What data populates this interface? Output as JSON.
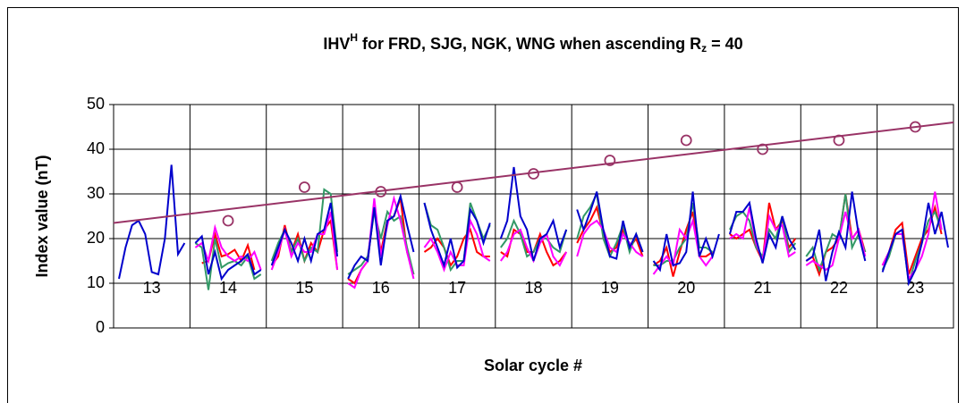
{
  "chart_data": {
    "type": "line",
    "title": {
      "main": "IHV",
      "sup": "H",
      "mid": " for FRD, SJG, NGK, WNG when ascending R",
      "sub": "z",
      "end": " = 40"
    },
    "y_label": "Index value (nT)",
    "x_label": "Solar cycle #",
    "categories": [
      "13",
      "14",
      "15",
      "16",
      "17",
      "18",
      "19",
      "20",
      "21",
      "22",
      "23"
    ],
    "ylim": [
      0,
      50
    ],
    "yticks": [
      0,
      10,
      20,
      30,
      40,
      50
    ],
    "grid": true,
    "series": [
      {
        "color": "#ff0000",
        "values": [
          null,
          [
            null,
            14.5,
            15,
            21,
            16,
            16.5,
            17.5,
            15,
            18.5,
            13,
            null
          ],
          [
            14,
            16,
            23,
            17,
            21,
            15,
            19,
            17,
            22,
            24,
            13
          ],
          [
            11,
            10,
            13,
            15,
            27,
            17,
            24,
            25,
            29,
            17,
            12
          ],
          [
            17,
            18,
            20,
            18,
            14,
            16,
            20,
            22,
            17,
            16,
            16
          ],
          [
            17,
            16,
            22,
            21,
            17,
            17,
            21,
            17,
            14,
            15,
            17
          ],
          [
            19,
            22,
            24,
            27,
            21,
            17,
            18,
            22,
            18,
            20,
            16
          ],
          [
            14,
            15,
            18,
            11.5,
            17,
            22,
            26,
            16,
            16,
            17,
            null
          ],
          [
            21,
            20,
            21,
            22,
            18,
            15,
            28,
            22,
            24,
            18,
            20
          ],
          [
            15,
            16,
            12,
            17,
            18,
            20,
            30,
            20,
            22,
            17,
            null
          ],
          [
            14,
            17,
            22,
            23.5,
            12,
            16,
            20,
            22,
            27,
            21,
            null
          ]
        ]
      },
      {
        "color": "#339966",
        "values": [
          null,
          [
            19,
            18,
            8.5,
            20,
            13.5,
            14.5,
            15,
            14,
            16,
            11,
            12
          ],
          [
            15,
            19,
            22,
            17,
            20,
            15,
            18,
            17,
            31,
            30,
            17
          ],
          [
            12,
            13,
            14,
            16,
            26,
            20,
            26,
            24,
            25,
            18,
            12
          ],
          [
            28,
            23,
            22,
            18,
            13,
            15,
            15,
            28,
            24,
            20,
            23
          ],
          [
            18,
            20,
            24,
            21,
            16,
            17,
            20,
            20,
            18,
            17,
            22
          ],
          [
            20,
            25,
            27,
            30,
            20,
            16,
            19,
            23,
            17,
            21,
            17
          ],
          [
            14,
            14,
            15,
            15,
            18,
            20,
            28,
            18,
            18,
            17,
            null
          ],
          [
            22,
            25,
            26,
            24,
            18,
            16,
            22,
            20,
            25,
            17,
            19
          ],
          [
            16,
            18,
            13,
            17,
            21,
            20,
            30,
            18,
            21,
            17,
            null
          ],
          [
            13,
            16,
            21,
            22,
            10,
            15,
            19,
            24,
            26,
            22,
            null
          ]
        ]
      },
      {
        "color": "#ff00ff",
        "values": [
          null,
          [
            18,
            19,
            15,
            22.5,
            18,
            16,
            15,
            16,
            15,
            17,
            13
          ],
          [
            13,
            17,
            22,
            16,
            19,
            17,
            17,
            21,
            21,
            26,
            13
          ],
          [
            10,
            9,
            13,
            15,
            29,
            16,
            23,
            29,
            24,
            17,
            11
          ],
          [
            18,
            20,
            17,
            13,
            17,
            14,
            14,
            24,
            21,
            16,
            15
          ],
          [
            15,
            17,
            21,
            22,
            18,
            15,
            19,
            21,
            16,
            14,
            17
          ],
          [
            16,
            21,
            23,
            24,
            22,
            18,
            17,
            21,
            19,
            17,
            16
          ],
          [
            12,
            14,
            16,
            14,
            22,
            20,
            24,
            16,
            14,
            16,
            null
          ],
          [
            20,
            21,
            20,
            27,
            19,
            15,
            25,
            22,
            23,
            16,
            17
          ],
          [
            14,
            15,
            14,
            13,
            14,
            20,
            26,
            20,
            22,
            16,
            null
          ],
          [
            14,
            17,
            21,
            21,
            11,
            13,
            16,
            21,
            30.5,
            22,
            null
          ]
        ]
      },
      {
        "color": "#0000cc",
        "values": [
          [
            11,
            18,
            23,
            24,
            21,
            12.5,
            12,
            20,
            36.5,
            16.5,
            19
          ],
          [
            19,
            20.5,
            12,
            17,
            11,
            13,
            14,
            15,
            16.5,
            12,
            13
          ],
          [
            14,
            18,
            22,
            19,
            15,
            20,
            15,
            21,
            22,
            28,
            16
          ],
          [
            11,
            14,
            16,
            15,
            27,
            14,
            24,
            25,
            29.5,
            23,
            17
          ],
          [
            28,
            22,
            18,
            14,
            20,
            13.5,
            15,
            26.5,
            24,
            19,
            23.5
          ],
          [
            20,
            24,
            36,
            25,
            22,
            15,
            20,
            21,
            24,
            18,
            22
          ],
          [
            26.5,
            22,
            26,
            30.5,
            22,
            16,
            15.5,
            24,
            18,
            21,
            17
          ],
          [
            15,
            13,
            21,
            14,
            14.5,
            17,
            30.5,
            16,
            20,
            16,
            21
          ],
          [
            21,
            26,
            26,
            28,
            20,
            14.5,
            21,
            18,
            25,
            20,
            17.5
          ],
          [
            15,
            16,
            22,
            10.5,
            17,
            21.5,
            18,
            30.5,
            21,
            15,
            null
          ],
          [
            12.5,
            17,
            21,
            22,
            10,
            13,
            19,
            28,
            21,
            26,
            18
          ]
        ]
      }
    ],
    "markers": {
      "color": "#993366",
      "values": [
        null,
        24,
        31.5,
        30.5,
        31.5,
        34.5,
        37.5,
        42,
        40,
        42,
        45
      ]
    },
    "trend": {
      "color": "#993366",
      "values": [
        23.5,
        46
      ]
    }
  }
}
